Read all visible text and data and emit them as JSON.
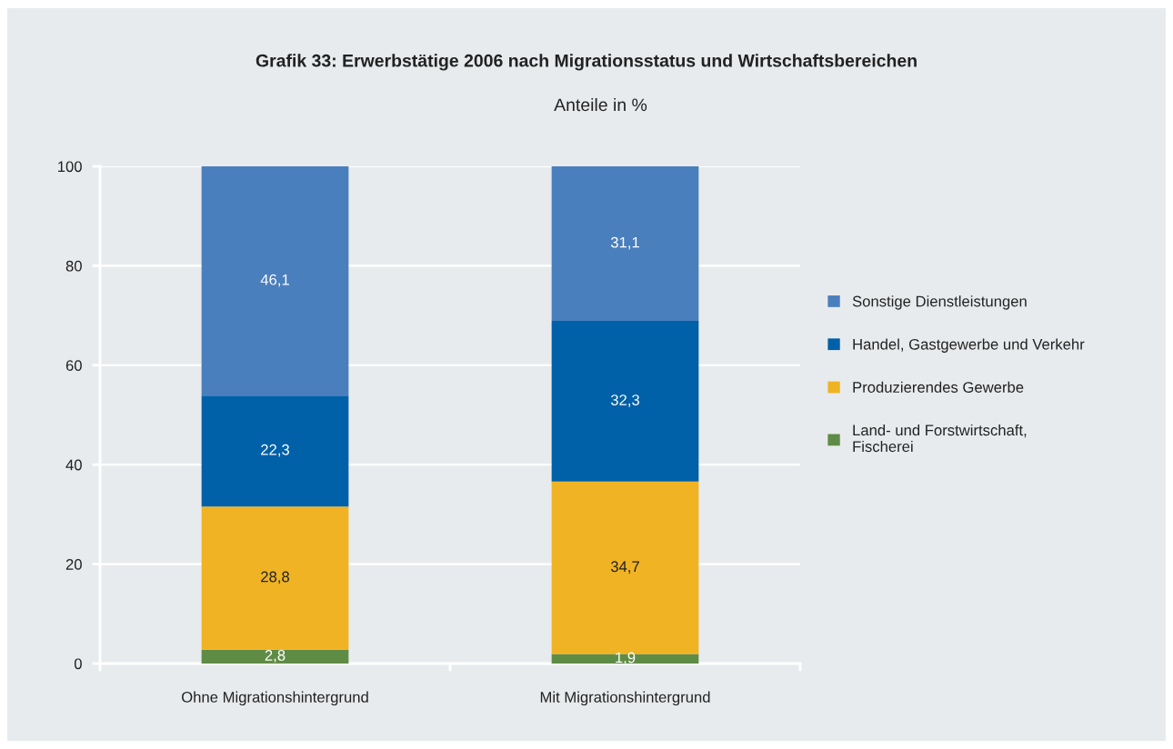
{
  "chart_data": {
    "type": "bar",
    "stacked": true,
    "title": "Grafik 33: Erwerbstätige 2006 nach Migrationsstatus und Wirtschaftsbereichen",
    "subtitle": "Anteile in %",
    "categories": [
      "Ohne Migrationshintergrund",
      "Mit Migrationshintergrund"
    ],
    "series": [
      {
        "name": "Land- und Forstwirtschaft,\nFischerei",
        "color": "#5e8c45",
        "values": [
          2.8,
          1.9
        ],
        "value_labels": [
          "2,8",
          "1,9"
        ]
      },
      {
        "name": "Produzierendes Gewerbe",
        "color": "#f0b323",
        "values": [
          28.8,
          34.7
        ],
        "value_labels": [
          "28,8",
          "34,7"
        ]
      },
      {
        "name": "Handel, Gastgewerbe und Verkehr",
        "color": "#0060a8",
        "values": [
          22.3,
          32.3
        ],
        "value_labels": [
          "22,3",
          "32,3"
        ]
      },
      {
        "name": "Sonstige Dienstleistungen",
        "color": "#4a7fbd",
        "values": [
          46.1,
          31.1
        ],
        "value_labels": [
          "46,1",
          "31,1"
        ]
      }
    ],
    "ylim": [
      0,
      100
    ],
    "yticks": [
      0,
      20,
      40,
      60,
      80,
      100
    ],
    "grid": "y",
    "legend": "right"
  }
}
